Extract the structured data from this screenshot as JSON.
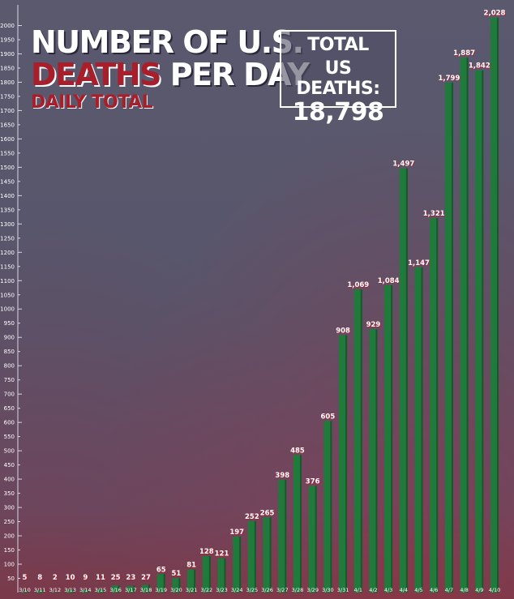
{
  "title": {
    "line1": "NUMBER OF U.S.",
    "line2_red": "DEATHS",
    "line2_rest": " PER DAY",
    "subtitle": "DAILY TOTAL"
  },
  "total_box": {
    "label_line1": "TOTAL",
    "label_line2": "US DEATHS:",
    "value": "18,798"
  },
  "colors": {
    "bar": "#1f7a3c",
    "bar_dark": "#145a2b",
    "label_text": "#ffffff",
    "label_shadow": "#b02030",
    "accent_red": "#a81e2a"
  },
  "chart_data": {
    "type": "bar",
    "categories": [
      "3/10",
      "3/11",
      "3/12",
      "3/13",
      "3/14",
      "3/15",
      "3/16",
      "3/17",
      "3/18",
      "3/19",
      "3/20",
      "3/21",
      "3/22",
      "3/23",
      "3/24",
      "3/25",
      "3/26",
      "3/27",
      "3/28",
      "3/29",
      "3/30",
      "3/31",
      "4/1",
      "4/2",
      "4/3",
      "4/4",
      "4/5",
      "4/6",
      "4/7",
      "4/8",
      "4/9",
      "4/10"
    ],
    "values": [
      5,
      8,
      2,
      10,
      9,
      11,
      25,
      23,
      27,
      65,
      51,
      81,
      128,
      121,
      197,
      252,
      265,
      398,
      485,
      376,
      605,
      908,
      1069,
      929,
      1084,
      1497,
      1147,
      1321,
      1799,
      1887,
      1842,
      2028
    ],
    "bar_heights": [
      5,
      8,
      2,
      10,
      9,
      11,
      25,
      23,
      27,
      65,
      51,
      81,
      128,
      121,
      197,
      252,
      265,
      398,
      485,
      376,
      605,
      908,
      1069,
      929,
      1084,
      1497,
      1147,
      1321,
      1799,
      1887,
      1842,
      2028
    ],
    "data_labels": [
      "5",
      "8",
      "2",
      "10",
      "9",
      "11",
      "25",
      "23",
      "27",
      "65",
      "51",
      "81",
      "128",
      "121",
      "197",
      "252",
      "265",
      "398",
      "485",
      "376",
      "605",
      "908",
      "1,069",
      "929",
      "1,084",
      "1,497",
      "1,147",
      "1,321",
      "1,799",
      "1,887",
      "1,842",
      "2,028"
    ],
    "y_ticks": [
      50,
      100,
      150,
      200,
      250,
      300,
      350,
      400,
      450,
      500,
      550,
      600,
      650,
      700,
      750,
      800,
      850,
      900,
      950,
      1000,
      1050,
      1100,
      1150,
      1200,
      1250,
      1300,
      1350,
      1400,
      1450,
      1500,
      1550,
      1600,
      1650,
      1700,
      1750,
      1800,
      1850,
      1900,
      1950,
      2000
    ],
    "ylim": [
      0,
      2050
    ],
    "grid": false,
    "legend": "none",
    "xlabel": "",
    "ylabel": ""
  }
}
